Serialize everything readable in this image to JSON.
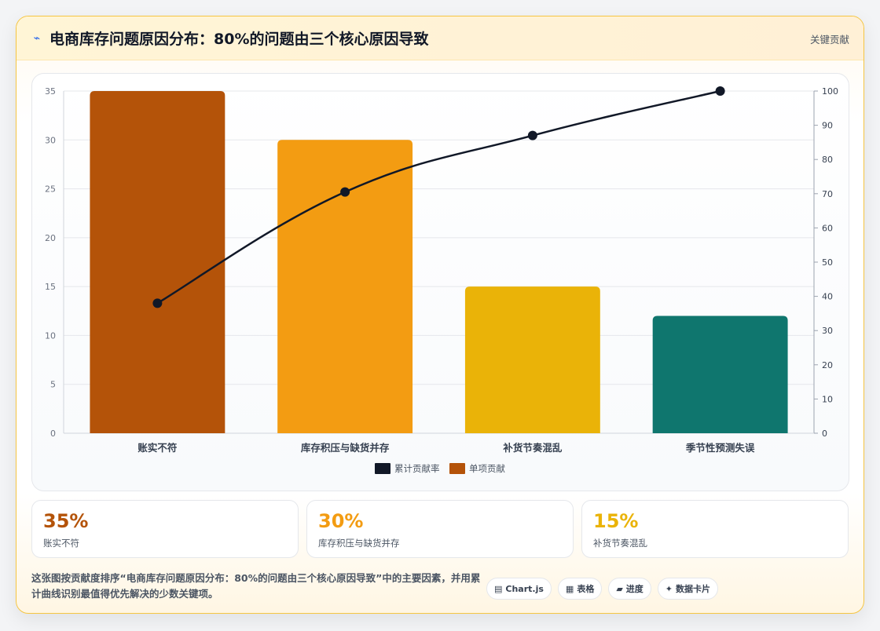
{
  "header": {
    "icon": "chart-sparkle-icon",
    "title": "电商库存问题原因分布：80%的问题由三个核心原因导致",
    "tag": "关键贡献"
  },
  "chart_data": {
    "type": "bar",
    "categories": [
      "账实不符",
      "库存积压与缺货并存",
      "补货节奏混乱",
      "季节性预测失误"
    ],
    "series": [
      {
        "name": "单项贡献",
        "type": "bar",
        "axis": "left",
        "values": [
          35,
          30,
          15,
          12
        ],
        "colors": [
          "#b45309",
          "#f39c12",
          "#eab308",
          "#0f766e"
        ]
      },
      {
        "name": "累计贡献率",
        "type": "line",
        "axis": "right",
        "values": [
          38,
          70.5,
          87,
          100
        ],
        "color": "#111827"
      }
    ],
    "ylim_left": [
      0,
      35
    ],
    "yticks_left": [
      0,
      5,
      10,
      15,
      20,
      25,
      30,
      35
    ],
    "ylim_right": [
      0,
      100
    ],
    "yticks_right": [
      0,
      10,
      20,
      30,
      40,
      50,
      60,
      70,
      80,
      90,
      100
    ],
    "grid": true,
    "legend_position": "bottom",
    "legend": [
      {
        "label": "累计贡献率",
        "color": "#111827"
      },
      {
        "label": "单项贡献",
        "color": "#b45309"
      }
    ]
  },
  "stats": [
    {
      "value": "35%",
      "label": "账实不符",
      "color": "#b45309"
    },
    {
      "value": "30%",
      "label": "库存积压与缺货并存",
      "color": "#f39c12"
    },
    {
      "value": "15%",
      "label": "补货节奏混乱",
      "color": "#eab308"
    }
  ],
  "description": "这张图按贡献度排序“电商库存问题原因分布：80%的问题由三个核心原因导致”中的主要因素，并用累计曲线识别最值得优先解决的少数关键项。",
  "chips": [
    {
      "icon": "▤",
      "icon_name": "chart-icon",
      "label": "Chart.js"
    },
    {
      "icon": "▦",
      "icon_name": "table-icon",
      "label": "表格"
    },
    {
      "icon": "▰",
      "icon_name": "progress-icon",
      "label": "进度"
    },
    {
      "icon": "✦",
      "icon_name": "card-icon",
      "label": "数据卡片"
    }
  ]
}
